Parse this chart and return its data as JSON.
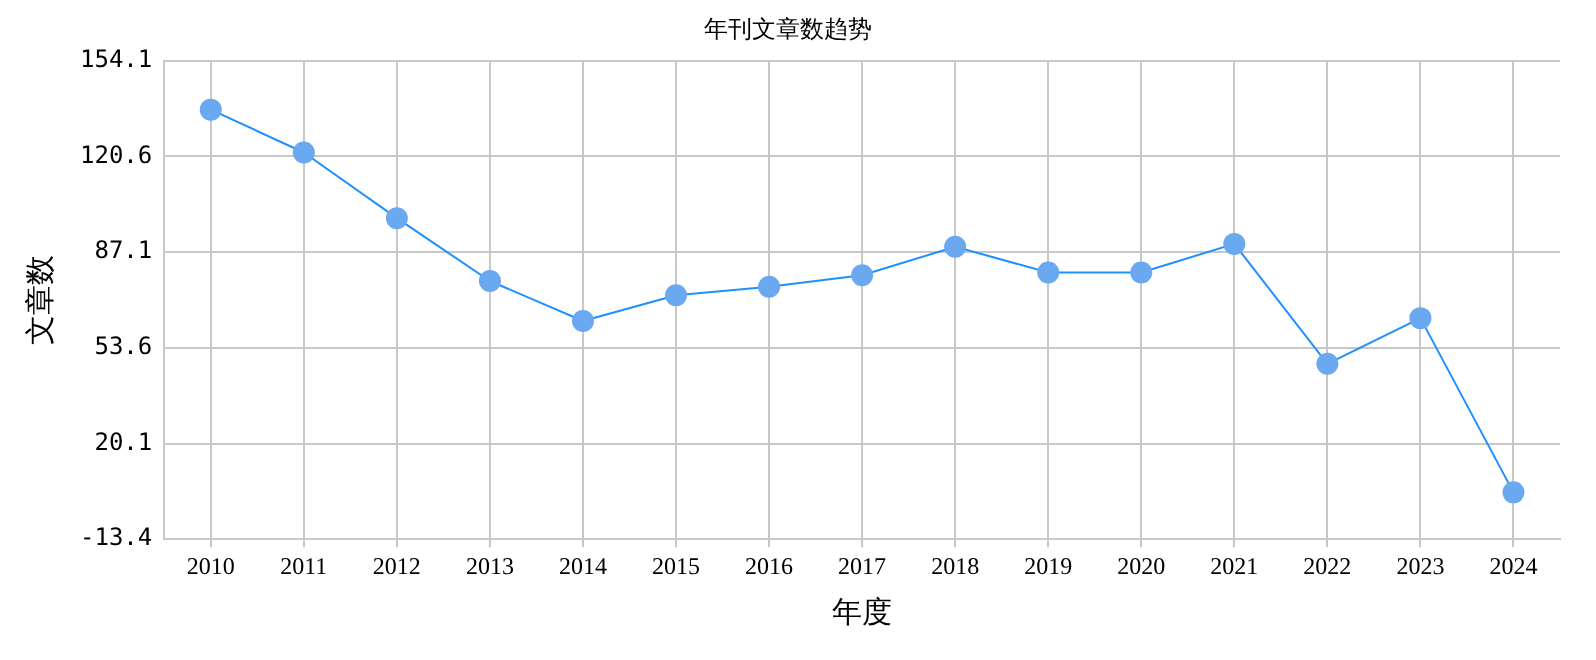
{
  "chart_data": {
    "type": "line",
    "title": "年刊文章数趋势",
    "xlabel": "年度",
    "ylabel": "文章数",
    "categories": [
      "2010",
      "2011",
      "2012",
      "2013",
      "2014",
      "2015",
      "2016",
      "2017",
      "2018",
      "2019",
      "2020",
      "2021",
      "2022",
      "2023",
      "2024"
    ],
    "series": [
      {
        "color": "#1e90ff",
        "values": [
          137,
          122,
          99,
          77,
          63,
          72,
          75,
          79,
          89,
          80,
          80,
          90,
          48,
          64,
          3
        ]
      }
    ],
    "ylim": [
      -13.4,
      154.1
    ],
    "yticks": [
      -13.4,
      20.1,
      53.6,
      87.1,
      120.6,
      154.1
    ],
    "grid": true,
    "marker": "circle",
    "line_style": "solid",
    "legend": false
  }
}
